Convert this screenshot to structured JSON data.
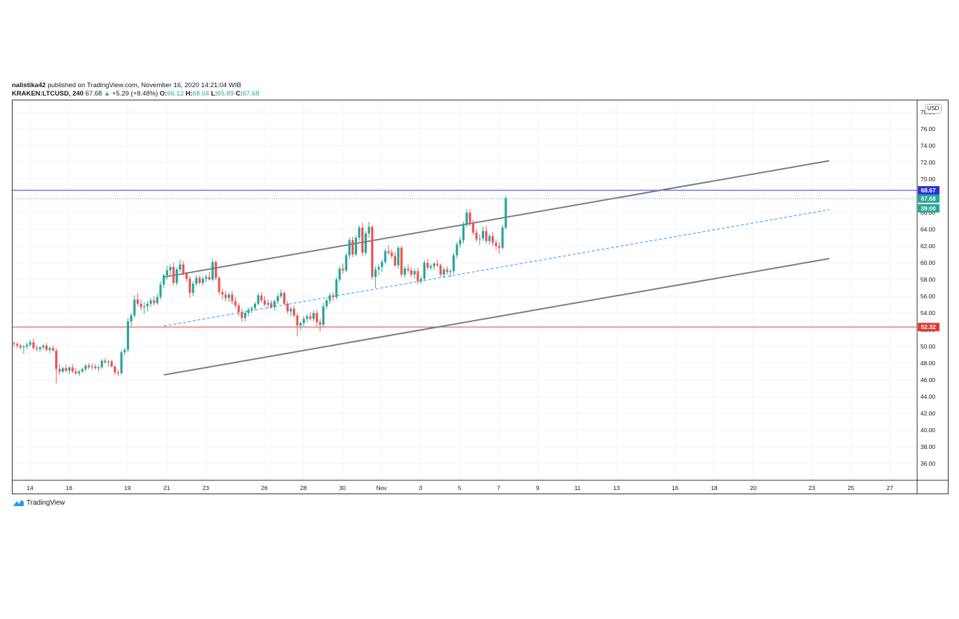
{
  "header": {
    "author": "nalistika42",
    "published_text": "published on TradingView.com, November 16, 2020 14:21:04 WIB",
    "symbol": "KRAKEN:LTCUSD, 240",
    "last": "67.68",
    "change": "+5.29 (+8.48%)",
    "o_label": "O:",
    "o": "66.12",
    "h_label": "H:",
    "h": "68.04",
    "l_label": "L:",
    "l": "65.89",
    "c_label": "C:",
    "c": "67.68"
  },
  "currency_label": "USD",
  "brand": "TradingView",
  "chart_data": {
    "type": "candlestick",
    "y_axis": {
      "ticks": [
        "36.00",
        "38.00",
        "40.00",
        "42.00",
        "44.00",
        "46.00",
        "48.00",
        "50.00",
        "52.00",
        "54.00",
        "56.00",
        "58.00",
        "60.00",
        "62.00",
        "64.00",
        "66.00",
        "68.00",
        "70.00",
        "72.00",
        "74.00",
        "76.00",
        "78.00"
      ],
      "range": [
        35,
        79
      ],
      "grid": true
    },
    "x_axis": {
      "ticks": [
        "14",
        "16",
        "19",
        "21",
        "23",
        "26",
        "28",
        "30",
        "Nov",
        "3",
        "5",
        "7",
        "9",
        "11",
        "13",
        "16",
        "18",
        "20",
        "23",
        "25",
        "27"
      ],
      "grid": true
    },
    "price_labels": [
      {
        "value": "68.67",
        "color": "#2f2fd6",
        "kind": "horizontal line"
      },
      {
        "value": "67.68",
        "color": "#26a69a",
        "kind": "last price"
      },
      {
        "value": "39:00",
        "color": "#26a69a",
        "kind": "countdown"
      },
      {
        "value": "52.32",
        "color": "#e53935",
        "kind": "horizontal line"
      }
    ],
    "candles_ohlc": [
      [
        50.4,
        50.6,
        49.9,
        50.3
      ],
      [
        50.3,
        50.5,
        49.8,
        50.1
      ],
      [
        50.1,
        50.3,
        49.6,
        49.9
      ],
      [
        49.9,
        50.2,
        49.1,
        50.0
      ],
      [
        50.0,
        50.5,
        49.7,
        50.2
      ],
      [
        50.2,
        50.8,
        50.0,
        50.5
      ],
      [
        50.5,
        51.0,
        49.6,
        49.8
      ],
      [
        49.8,
        50.2,
        49.4,
        49.7
      ],
      [
        49.7,
        50.0,
        49.3,
        49.9
      ],
      [
        49.9,
        50.3,
        49.6,
        50.1
      ],
      [
        50.1,
        50.4,
        49.4,
        49.6
      ],
      [
        49.6,
        50.0,
        49.2,
        49.8
      ],
      [
        49.8,
        50.1,
        49.4,
        49.5
      ],
      [
        49.5,
        49.8,
        45.6,
        47.3
      ],
      [
        47.3,
        47.9,
        46.6,
        47.0
      ],
      [
        47.0,
        47.6,
        46.8,
        47.4
      ],
      [
        47.4,
        47.8,
        46.9,
        47.1
      ],
      [
        47.1,
        47.6,
        46.7,
        47.5
      ],
      [
        47.5,
        47.9,
        46.8,
        47.0
      ],
      [
        47.0,
        47.4,
        46.6,
        46.8
      ],
      [
        46.8,
        47.2,
        46.5,
        47.0
      ],
      [
        47.0,
        47.5,
        46.8,
        47.3
      ],
      [
        47.3,
        47.9,
        47.0,
        47.7
      ],
      [
        47.7,
        48.0,
        47.3,
        47.5
      ],
      [
        47.5,
        47.9,
        47.2,
        47.6
      ],
      [
        47.6,
        47.9,
        47.2,
        47.4
      ],
      [
        47.4,
        47.8,
        47.0,
        47.5
      ],
      [
        47.5,
        48.5,
        47.3,
        48.3
      ],
      [
        48.3,
        48.6,
        47.9,
        48.1
      ],
      [
        48.1,
        48.4,
        47.6,
        48.2
      ],
      [
        48.2,
        48.4,
        47.5,
        47.6
      ],
      [
        47.6,
        47.8,
        46.6,
        46.9
      ],
      [
        46.9,
        47.2,
        46.5,
        46.8
      ],
      [
        46.8,
        49.6,
        46.6,
        49.3
      ],
      [
        49.3,
        49.8,
        48.9,
        49.6
      ],
      [
        49.6,
        53.4,
        49.3,
        53.0
      ],
      [
        53.0,
        54.0,
        52.4,
        53.7
      ],
      [
        53.7,
        56.1,
        53.4,
        55.6
      ],
      [
        55.6,
        56.4,
        54.8,
        55.1
      ],
      [
        55.1,
        55.6,
        54.3,
        54.7
      ],
      [
        54.7,
        55.3,
        53.9,
        54.8
      ],
      [
        54.8,
        55.4,
        54.2,
        55.1
      ],
      [
        55.1,
        55.8,
        54.7,
        55.5
      ],
      [
        55.5,
        56.0,
        54.9,
        55.2
      ],
      [
        55.2,
        56.3,
        55.0,
        55.9
      ],
      [
        55.9,
        57.8,
        55.6,
        57.4
      ],
      [
        57.4,
        58.7,
        57.0,
        58.5
      ],
      [
        58.5,
        59.6,
        58.0,
        59.1
      ],
      [
        59.1,
        59.8,
        58.6,
        59.5
      ],
      [
        59.5,
        60.0,
        57.3,
        57.6
      ],
      [
        57.6,
        59.4,
        57.3,
        59.2
      ],
      [
        59.2,
        60.4,
        58.9,
        59.8
      ],
      [
        59.8,
        60.2,
        58.5,
        58.7
      ],
      [
        58.7,
        58.9,
        57.8,
        58.1
      ],
      [
        58.1,
        58.4,
        55.8,
        56.4
      ],
      [
        56.4,
        57.8,
        56.0,
        57.5
      ],
      [
        57.5,
        58.5,
        57.2,
        58.2
      ],
      [
        58.2,
        58.5,
        57.4,
        57.6
      ],
      [
        57.6,
        58.4,
        57.3,
        58.1
      ],
      [
        58.1,
        58.6,
        57.7,
        58.3
      ],
      [
        58.3,
        58.9,
        57.9,
        58.0
      ],
      [
        58.0,
        60.5,
        57.8,
        60.1
      ],
      [
        60.1,
        60.3,
        57.9,
        58.2
      ],
      [
        58.2,
        58.4,
        56.2,
        56.5
      ],
      [
        56.5,
        56.9,
        55.6,
        56.2
      ],
      [
        56.2,
        56.6,
        55.4,
        55.8
      ],
      [
        55.8,
        56.4,
        55.3,
        56.2
      ],
      [
        56.2,
        56.6,
        55.0,
        55.4
      ],
      [
        55.4,
        55.9,
        54.6,
        54.9
      ],
      [
        54.9,
        55.2,
        53.6,
        54.1
      ],
      [
        54.1,
        54.5,
        52.9,
        53.4
      ],
      [
        53.4,
        54.3,
        53.0,
        54.0
      ],
      [
        54.0,
        54.6,
        53.6,
        54.4
      ],
      [
        54.4,
        54.8,
        54.0,
        54.6
      ],
      [
        54.6,
        55.3,
        54.3,
        55.1
      ],
      [
        55.1,
        56.4,
        54.9,
        56.1
      ],
      [
        56.1,
        56.5,
        55.2,
        55.5
      ],
      [
        55.5,
        56.0,
        54.8,
        55.0
      ],
      [
        55.0,
        55.6,
        54.6,
        55.2
      ],
      [
        55.2,
        55.5,
        54.5,
        54.7
      ],
      [
        54.7,
        55.6,
        54.3,
        55.4
      ],
      [
        55.4,
        56.3,
        55.1,
        56.0
      ],
      [
        56.0,
        56.8,
        55.7,
        56.4
      ],
      [
        56.4,
        56.6,
        54.9,
        55.1
      ],
      [
        55.1,
        55.4,
        53.9,
        54.2
      ],
      [
        54.2,
        54.8,
        53.6,
        54.5
      ],
      [
        54.5,
        54.9,
        53.5,
        53.7
      ],
      [
        53.7,
        54.0,
        51.2,
        52.5
      ],
      [
        52.5,
        53.0,
        51.9,
        52.8
      ],
      [
        52.8,
        53.6,
        52.4,
        53.3
      ],
      [
        53.3,
        53.9,
        52.9,
        53.6
      ],
      [
        53.6,
        54.1,
        53.1,
        53.3
      ],
      [
        53.3,
        54.3,
        53.0,
        54.0
      ],
      [
        54.0,
        54.4,
        52.4,
        52.9
      ],
      [
        52.9,
        53.3,
        51.8,
        52.6
      ],
      [
        52.6,
        55.2,
        52.3,
        54.8
      ],
      [
        54.8,
        55.8,
        54.5,
        55.5
      ],
      [
        55.5,
        56.4,
        55.1,
        56.1
      ],
      [
        56.1,
        56.5,
        55.4,
        55.9
      ],
      [
        55.9,
        58.3,
        55.6,
        58.0
      ],
      [
        58.0,
        59.6,
        57.7,
        59.3
      ],
      [
        59.3,
        59.9,
        58.7,
        59.1
      ],
      [
        59.1,
        61.2,
        58.9,
        60.9
      ],
      [
        60.9,
        63.0,
        60.5,
        62.7
      ],
      [
        62.7,
        63.1,
        60.7,
        61.0
      ],
      [
        61.0,
        63.3,
        60.8,
        63.0
      ],
      [
        63.0,
        64.5,
        62.6,
        64.2
      ],
      [
        64.2,
        64.8,
        60.8,
        61.2
      ],
      [
        61.2,
        63.8,
        60.9,
        63.5
      ],
      [
        63.5,
        64.9,
        63.0,
        64.3
      ],
      [
        64.3,
        64.5,
        58.0,
        58.3
      ],
      [
        58.3,
        59.6,
        57.0,
        59.2
      ],
      [
        59.2,
        59.8,
        58.5,
        59.5
      ],
      [
        59.5,
        60.4,
        58.9,
        60.1
      ],
      [
        60.1,
        61.7,
        59.8,
        61.4
      ],
      [
        61.4,
        62.1,
        60.9,
        61.2
      ],
      [
        61.2,
        61.6,
        60.5,
        60.8
      ],
      [
        60.8,
        61.3,
        59.5,
        59.7
      ],
      [
        59.7,
        62.0,
        59.3,
        61.8
      ],
      [
        61.8,
        62.0,
        58.3,
        58.6
      ],
      [
        58.6,
        59.6,
        58.2,
        59.3
      ],
      [
        59.3,
        59.8,
        58.8,
        59.1
      ],
      [
        59.1,
        59.4,
        58.3,
        58.6
      ],
      [
        58.6,
        59.3,
        58.1,
        59.0
      ],
      [
        59.0,
        59.4,
        57.4,
        57.8
      ],
      [
        57.8,
        58.4,
        57.5,
        58.1
      ],
      [
        58.1,
        60.3,
        57.9,
        60.0
      ],
      [
        60.0,
        60.5,
        59.1,
        59.4
      ],
      [
        59.4,
        59.9,
        59.1,
        59.6
      ],
      [
        59.6,
        60.1,
        59.2,
        59.9
      ],
      [
        59.9,
        60.4,
        59.5,
        59.7
      ],
      [
        59.7,
        59.9,
        58.3,
        58.6
      ],
      [
        58.6,
        59.5,
        58.2,
        59.2
      ],
      [
        59.2,
        59.6,
        58.6,
        58.9
      ],
      [
        58.9,
        59.3,
        58.3,
        59.0
      ],
      [
        59.0,
        61.2,
        58.7,
        60.9
      ],
      [
        60.9,
        62.5,
        60.5,
        62.2
      ],
      [
        62.2,
        63.1,
        61.8,
        62.7
      ],
      [
        62.7,
        64.9,
        62.3,
        64.6
      ],
      [
        64.6,
        66.4,
        64.2,
        66.0
      ],
      [
        66.0,
        66.4,
        64.4,
        64.8
      ],
      [
        64.8,
        65.1,
        63.3,
        63.6
      ],
      [
        63.6,
        64.0,
        62.5,
        62.8
      ],
      [
        62.8,
        63.4,
        62.1,
        62.9
      ],
      [
        62.9,
        64.3,
        62.6,
        63.8
      ],
      [
        63.8,
        64.4,
        62.3,
        62.6
      ],
      [
        62.6,
        63.5,
        62.2,
        63.2
      ],
      [
        63.2,
        63.7,
        62.0,
        62.4
      ],
      [
        62.4,
        62.8,
        61.6,
        62.0
      ],
      [
        62.0,
        62.5,
        61.1,
        61.8
      ],
      [
        61.8,
        64.5,
        61.6,
        64.2
      ],
      [
        64.2,
        68.0,
        64.0,
        67.7
      ]
    ],
    "channel": {
      "upper": {
        "from": "21",
        "to": "23",
        "start": 58.3,
        "end": 72.2
      },
      "lower": {
        "from": "21",
        "to": "23",
        "start": 46.6,
        "end": 60.5
      },
      "middle": {
        "from": "21",
        "to": "23",
        "start": 52.45,
        "end": 66.35,
        "style": "dashed"
      }
    },
    "colors": {
      "up": "#26a69a",
      "down": "#ef5350",
      "channel": "#787b86",
      "midline": "#2196f3"
    }
  }
}
